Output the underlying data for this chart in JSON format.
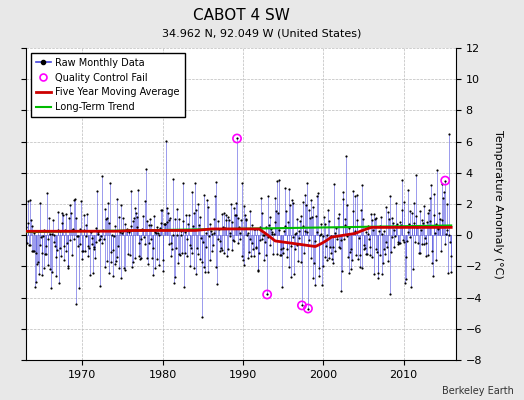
{
  "title": "CABOT 4 SW",
  "subtitle": "34.962 N, 92.049 W (United States)",
  "ylabel": "Temperature Anomaly (°C)",
  "credit": "Berkeley Earth",
  "year_start": 1963,
  "year_end": 2016,
  "ylim": [
    -8,
    12
  ],
  "yticks": [
    -8,
    -6,
    -4,
    -2,
    0,
    2,
    4,
    6,
    8,
    10,
    12
  ],
  "xticks": [
    1970,
    1980,
    1990,
    2000,
    2010
  ],
  "line_color": "#4444dd",
  "dot_color": "#000000",
  "ma_color": "#cc0000",
  "trend_color": "#00bb00",
  "qc_color": "#ff00ff",
  "background_color": "#e8e8e8",
  "plot_bg_color": "#ffffff"
}
